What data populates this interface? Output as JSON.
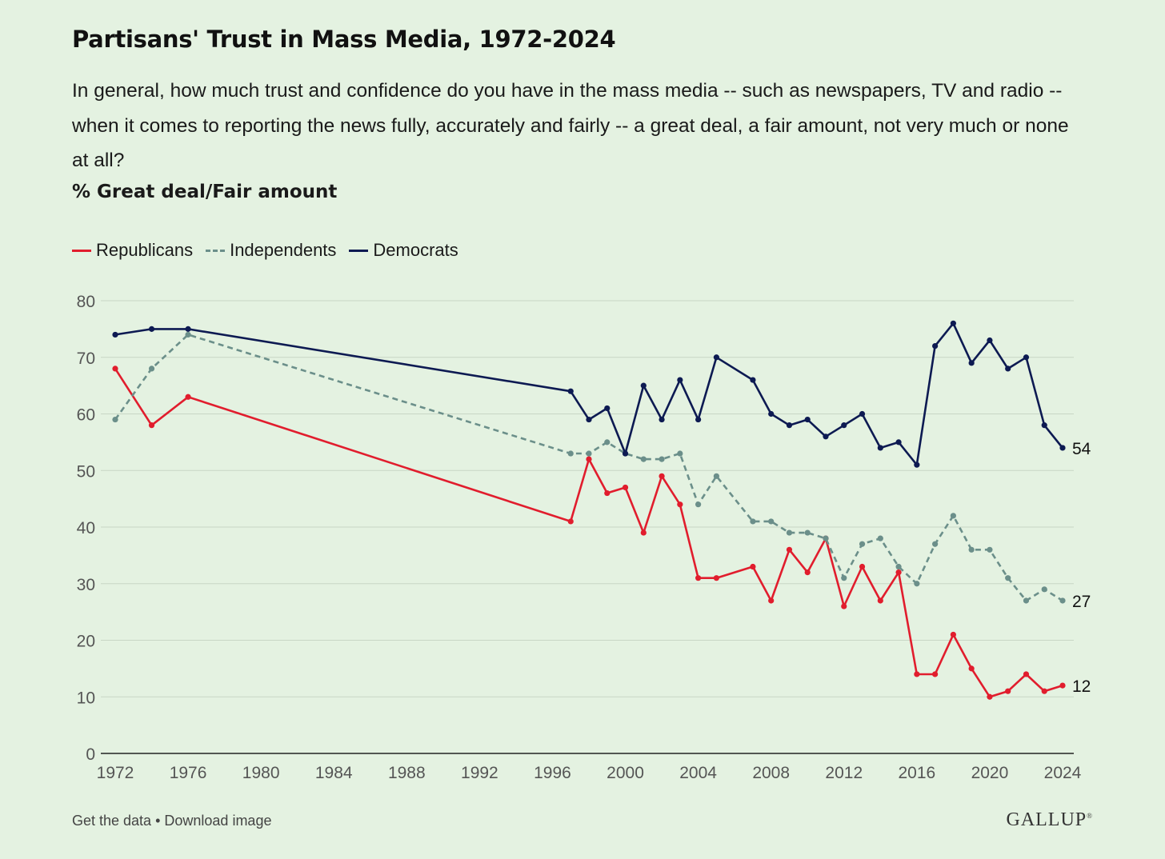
{
  "title": "Partisans' Trust in Mass Media, 1972-2024",
  "subtitle": "In general, how much trust and confidence do you have in the mass media -- such as newspapers, TV and radio -- when it comes to reporting the news fully, accurately and fairly -- a great deal, a fair amount, not very much or none at all?",
  "measure": "% Great deal/Fair amount",
  "footer": {
    "get_data": "Get the data",
    "separator": " • ",
    "download": "Download image"
  },
  "logo": {
    "text": "GALLUP",
    "mark": "®"
  },
  "chart_data": {
    "type": "line",
    "xlim": [
      1972,
      2024
    ],
    "ylim": [
      0,
      80
    ],
    "x_ticks": [
      1972,
      1976,
      1980,
      1984,
      1988,
      1992,
      1996,
      2000,
      2004,
      2008,
      2012,
      2016,
      2020,
      2024
    ],
    "y_ticks": [
      0,
      10,
      20,
      30,
      40,
      50,
      60,
      70,
      80
    ],
    "grid": true,
    "legend_position": "top-left",
    "series": [
      {
        "name": "Republicans",
        "color": "#e11d2d",
        "style": "solid",
        "end_label": "12",
        "points": [
          [
            1972,
            68
          ],
          [
            1974,
            58
          ],
          [
            1976,
            63
          ],
          [
            1997,
            41
          ],
          [
            1998,
            52
          ],
          [
            1999,
            46
          ],
          [
            2000,
            47
          ],
          [
            2001,
            39
          ],
          [
            2002,
            49
          ],
          [
            2003,
            44
          ],
          [
            2004,
            31
          ],
          [
            2005,
            31
          ],
          [
            2007,
            33
          ],
          [
            2008,
            27
          ],
          [
            2009,
            36
          ],
          [
            2010,
            32
          ],
          [
            2011,
            38
          ],
          [
            2012,
            26
          ],
          [
            2013,
            33
          ],
          [
            2014,
            27
          ],
          [
            2015,
            32
          ],
          [
            2016,
            14
          ],
          [
            2017,
            14
          ],
          [
            2018,
            21
          ],
          [
            2019,
            15
          ],
          [
            2020,
            10
          ],
          [
            2021,
            11
          ],
          [
            2022,
            14
          ],
          [
            2023,
            11
          ],
          [
            2024,
            12
          ]
        ]
      },
      {
        "name": "Independents",
        "color": "#6b8f8a",
        "style": "dashed",
        "end_label": "27",
        "points": [
          [
            1972,
            59
          ],
          [
            1974,
            68
          ],
          [
            1976,
            74
          ],
          [
            1997,
            53
          ],
          [
            1998,
            53
          ],
          [
            1999,
            55
          ],
          [
            2000,
            53
          ],
          [
            2001,
            52
          ],
          [
            2002,
            52
          ],
          [
            2003,
            53
          ],
          [
            2004,
            44
          ],
          [
            2005,
            49
          ],
          [
            2007,
            41
          ],
          [
            2008,
            41
          ],
          [
            2009,
            39
          ],
          [
            2010,
            39
          ],
          [
            2011,
            38
          ],
          [
            2012,
            31
          ],
          [
            2013,
            37
          ],
          [
            2014,
            38
          ],
          [
            2015,
            33
          ],
          [
            2016,
            30
          ],
          [
            2017,
            37
          ],
          [
            2018,
            42
          ],
          [
            2019,
            36
          ],
          [
            2020,
            36
          ],
          [
            2021,
            31
          ],
          [
            2022,
            27
          ],
          [
            2023,
            29
          ],
          [
            2024,
            27
          ]
        ]
      },
      {
        "name": "Democrats",
        "color": "#0d1a52",
        "style": "solid",
        "end_label": "54",
        "points": [
          [
            1972,
            74
          ],
          [
            1974,
            75
          ],
          [
            1976,
            75
          ],
          [
            1997,
            64
          ],
          [
            1998,
            59
          ],
          [
            1999,
            61
          ],
          [
            2000,
            53
          ],
          [
            2001,
            65
          ],
          [
            2002,
            59
          ],
          [
            2003,
            66
          ],
          [
            2004,
            59
          ],
          [
            2005,
            70
          ],
          [
            2007,
            66
          ],
          [
            2008,
            60
          ],
          [
            2009,
            58
          ],
          [
            2010,
            59
          ],
          [
            2011,
            56
          ],
          [
            2012,
            58
          ],
          [
            2013,
            60
          ],
          [
            2014,
            54
          ],
          [
            2015,
            55
          ],
          [
            2016,
            51
          ],
          [
            2017,
            72
          ],
          [
            2018,
            76
          ],
          [
            2019,
            69
          ],
          [
            2020,
            73
          ],
          [
            2021,
            68
          ],
          [
            2022,
            70
          ],
          [
            2023,
            58
          ],
          [
            2024,
            54
          ]
        ]
      }
    ]
  }
}
